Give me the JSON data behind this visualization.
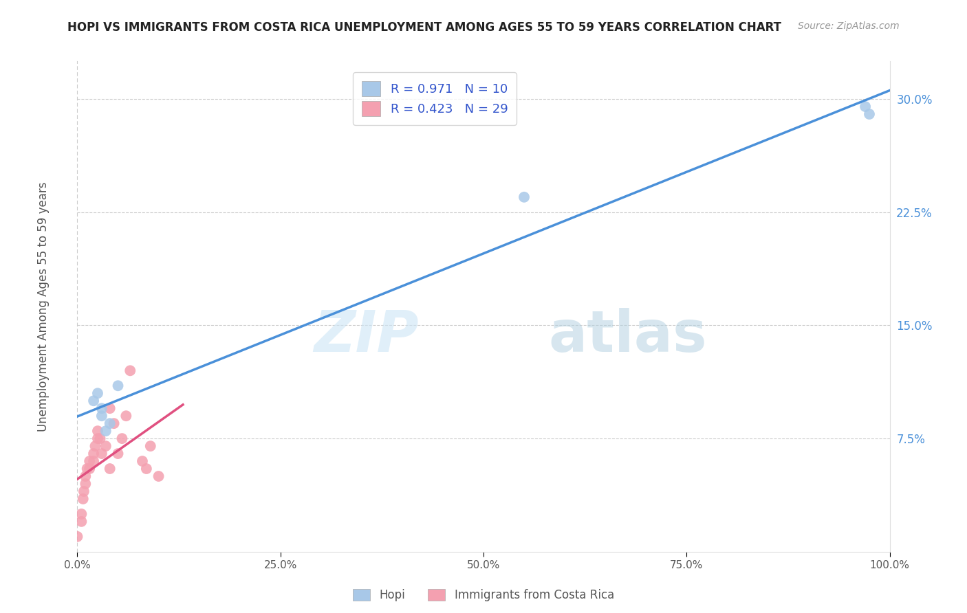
{
  "title": "HOPI VS IMMIGRANTS FROM COSTA RICA UNEMPLOYMENT AMONG AGES 55 TO 59 YEARS CORRELATION CHART",
  "source": "Source: ZipAtlas.com",
  "ylabel": "Unemployment Among Ages 55 to 59 years",
  "legend_labels": [
    "Hopi",
    "Immigrants from Costa Rica"
  ],
  "legend_R": [
    0.971,
    0.423
  ],
  "legend_N": [
    10,
    29
  ],
  "hopi_color": "#a8c8e8",
  "costa_rica_color": "#f4a0b0",
  "hopi_line_color": "#4a90d9",
  "costa_rica_line_color": "#e05080",
  "background_color": "#ffffff",
  "grid_color": "#cccccc",
  "title_color": "#222222",
  "axis_label_color": "#555555",
  "R_N_color": "#3355cc",
  "xlim": [
    0,
    1.0
  ],
  "ylim": [
    0,
    0.325
  ],
  "yticks": [
    0.075,
    0.15,
    0.225,
    0.3
  ],
  "ytick_labels": [
    "7.5%",
    "15.0%",
    "22.5%",
    "30.0%"
  ],
  "xticks": [
    0.0,
    0.25,
    0.5,
    0.75,
    1.0
  ],
  "xtick_labels": [
    "0.0%",
    "25.0%",
    "50.0%",
    "75.0%",
    "100.0%"
  ],
  "hopi_x": [
    0.02,
    0.025,
    0.03,
    0.03,
    0.035,
    0.04,
    0.05,
    0.55,
    0.97,
    0.975
  ],
  "hopi_y": [
    0.1,
    0.105,
    0.09,
    0.095,
    0.08,
    0.085,
    0.11,
    0.235,
    0.295,
    0.29
  ],
  "costa_rica_x": [
    0.0,
    0.005,
    0.005,
    0.007,
    0.008,
    0.01,
    0.01,
    0.012,
    0.015,
    0.015,
    0.02,
    0.02,
    0.022,
    0.025,
    0.025,
    0.028,
    0.03,
    0.035,
    0.04,
    0.04,
    0.045,
    0.05,
    0.055,
    0.06,
    0.065,
    0.08,
    0.085,
    0.09,
    0.1
  ],
  "costa_rica_y": [
    0.01,
    0.02,
    0.025,
    0.035,
    0.04,
    0.045,
    0.05,
    0.055,
    0.055,
    0.06,
    0.06,
    0.065,
    0.07,
    0.075,
    0.08,
    0.075,
    0.065,
    0.07,
    0.055,
    0.095,
    0.085,
    0.065,
    0.075,
    0.09,
    0.12,
    0.06,
    0.055,
    0.07,
    0.05
  ],
  "watermark_zip": "ZIP",
  "watermark_atlas": "atlas",
  "figsize": [
    14.06,
    8.92
  ],
  "dpi": 100
}
